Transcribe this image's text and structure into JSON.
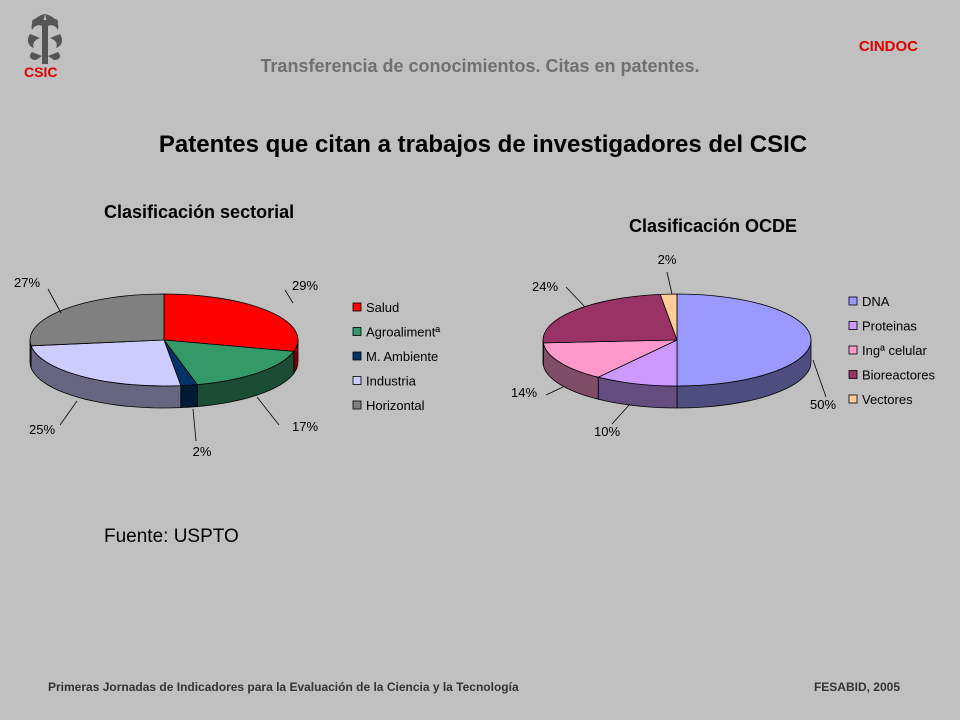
{
  "header": {
    "logo_text": "CSIC",
    "org": "CINDOC",
    "subtitle": "Transferencia de conocimientos. Citas en patentes.",
    "title": "Patentes que citan a trabajos de investigadores del CSIC"
  },
  "source": "Fuente: USPTO",
  "footer": {
    "left": "Primeras Jornadas de Indicadores para la Evaluación de la Ciencia y la Tecnología",
    "right": "FESABID, 2005"
  },
  "chart_data": [
    {
      "type": "pie",
      "title": "Clasificación sectorial",
      "categories": [
        "Salud",
        "Agroalimentª",
        "M. Ambiente",
        "Industria",
        "Horizontal"
      ],
      "values": [
        29,
        17,
        2,
        25,
        27
      ],
      "value_labels": [
        "29%",
        "17%",
        "2%",
        "25%",
        "27%"
      ],
      "unit": "%",
      "colors": [
        "#ff0000",
        "#339966",
        "#003366",
        "#ccccff",
        "#808080"
      ],
      "legend": "right"
    },
    {
      "type": "pie",
      "title": "Clasificación OCDE",
      "categories": [
        "DNA",
        "Proteinas",
        "Ingª celular",
        "Bioreactores",
        "Vectores"
      ],
      "values": [
        50,
        10,
        14,
        24,
        2
      ],
      "value_labels": [
        "50%",
        "10%",
        "14%",
        "24%",
        "2%"
      ],
      "unit": "%",
      "colors": [
        "#9999ff",
        "#cc99ff",
        "#ff99cc",
        "#993366",
        "#ffcc99"
      ],
      "legend": "right"
    }
  ]
}
